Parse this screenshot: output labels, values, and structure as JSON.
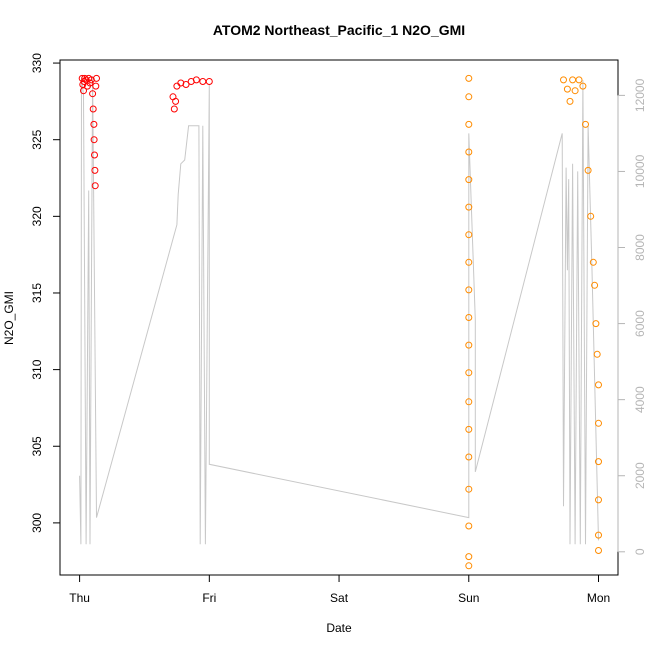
{
  "chart_data": {
    "type": "scatter",
    "title": "ATOM2 Northeast_Pacific_1 N2O_GMI",
    "xlabel": "Date",
    "ylabel": "N2O_GMI",
    "x_ticks": [
      "Thu",
      "Fri",
      "Sat",
      "Sun",
      "Mon"
    ],
    "x_range_days": [
      0,
      4
    ],
    "y_ticks": [
      300,
      305,
      310,
      315,
      320,
      325,
      330
    ],
    "ylim": [
      296.6,
      330.2
    ],
    "y2_ticks": [
      0,
      2000,
      4000,
      6000,
      8000,
      10000,
      12000
    ],
    "y2lim": [
      -610,
      12930
    ],
    "grid": false,
    "colors": {
      "red_series": "#ff0000",
      "orange_series": "#ff8c00",
      "altitude_line": "#c8c8c8",
      "right_axis": "#b5b5b5"
    },
    "series": [
      {
        "color": "red",
        "marker": "circle",
        "points": [
          [
            0.02,
            329.0
          ],
          [
            0.025,
            328.6
          ],
          [
            0.03,
            328.2
          ],
          [
            0.035,
            328.8
          ],
          [
            0.04,
            329.0
          ],
          [
            0.05,
            328.9
          ],
          [
            0.06,
            328.5
          ],
          [
            0.07,
            329.0
          ],
          [
            0.08,
            328.7
          ],
          [
            0.09,
            328.9
          ],
          [
            0.1,
            328.0
          ],
          [
            0.105,
            327.0
          ],
          [
            0.11,
            326.0
          ],
          [
            0.112,
            325.0
          ],
          [
            0.115,
            324.0
          ],
          [
            0.118,
            323.0
          ],
          [
            0.12,
            322.0
          ],
          [
            0.125,
            328.5
          ],
          [
            0.13,
            329.0
          ],
          [
            0.72,
            327.8
          ],
          [
            0.73,
            327.0
          ],
          [
            0.74,
            327.5
          ],
          [
            0.75,
            328.5
          ],
          [
            0.78,
            328.7
          ],
          [
            0.82,
            328.6
          ],
          [
            0.86,
            328.8
          ],
          [
            0.9,
            328.9
          ],
          [
            0.95,
            328.8
          ],
          [
            1.0,
            328.8
          ]
        ]
      },
      {
        "color": "orange",
        "marker": "circle",
        "points": [
          [
            3.0,
            329.0
          ],
          [
            3.0,
            327.8
          ],
          [
            3.0,
            326.0
          ],
          [
            3.0,
            324.2
          ],
          [
            3.0,
            322.4
          ],
          [
            3.0,
            320.6
          ],
          [
            3.0,
            318.8
          ],
          [
            3.0,
            317.0
          ],
          [
            3.0,
            315.2
          ],
          [
            3.0,
            313.4
          ],
          [
            3.0,
            311.6
          ],
          [
            3.0,
            309.8
          ],
          [
            3.0,
            307.9
          ],
          [
            3.0,
            306.1
          ],
          [
            3.0,
            304.3
          ],
          [
            3.0,
            302.2
          ],
          [
            3.0,
            299.8
          ],
          [
            3.0,
            297.8
          ],
          [
            3.0,
            297.2
          ],
          [
            3.73,
            328.9
          ],
          [
            3.76,
            328.3
          ],
          [
            3.78,
            327.5
          ],
          [
            3.8,
            328.9
          ],
          [
            3.82,
            328.2
          ],
          [
            3.85,
            328.9
          ],
          [
            3.88,
            328.5
          ],
          [
            3.9,
            326.0
          ],
          [
            3.92,
            323.0
          ],
          [
            3.94,
            320.0
          ],
          [
            3.96,
            317.0
          ],
          [
            3.97,
            315.5
          ],
          [
            3.98,
            313.0
          ],
          [
            3.99,
            311.0
          ],
          [
            4.0,
            309.0
          ],
          [
            4.0,
            306.5
          ],
          [
            4.0,
            304.0
          ],
          [
            4.0,
            301.5
          ],
          [
            4.0,
            299.2
          ],
          [
            4.0,
            298.2
          ]
        ]
      }
    ],
    "altitude_line": {
      "axis": "right",
      "points": [
        [
          0.0,
          2000
        ],
        [
          0.01,
          200
        ],
        [
          0.015,
          12500
        ],
        [
          0.03,
          12000
        ],
        [
          0.05,
          200
        ],
        [
          0.07,
          9500
        ],
        [
          0.08,
          200
        ],
        [
          0.1,
          12500
        ],
        [
          0.13,
          900
        ],
        [
          0.75,
          8600
        ],
        [
          0.76,
          9400
        ],
        [
          0.78,
          10200
        ],
        [
          0.81,
          10300
        ],
        [
          0.84,
          11200
        ],
        [
          0.86,
          11200
        ],
        [
          0.92,
          11200
        ],
        [
          0.93,
          200
        ],
        [
          0.95,
          11200
        ],
        [
          0.97,
          200
        ],
        [
          1.0,
          12300
        ],
        [
          1.0,
          2300
        ],
        [
          3.0,
          900
        ],
        [
          3.0,
          11000
        ],
        [
          3.05,
          6100
        ],
        [
          3.05,
          2100
        ],
        [
          3.72,
          11000
        ],
        [
          3.73,
          1200
        ],
        [
          3.75,
          10100
        ],
        [
          3.76,
          7400
        ],
        [
          3.77,
          9800
        ],
        [
          3.78,
          200
        ],
        [
          3.8,
          10200
        ],
        [
          3.82,
          200
        ],
        [
          3.84,
          10000
        ],
        [
          3.86,
          200
        ],
        [
          3.88,
          12400
        ],
        [
          3.9,
          200
        ],
        [
          3.92,
          11200
        ],
        [
          3.95,
          7400
        ],
        [
          4.0,
          300
        ]
      ]
    }
  }
}
